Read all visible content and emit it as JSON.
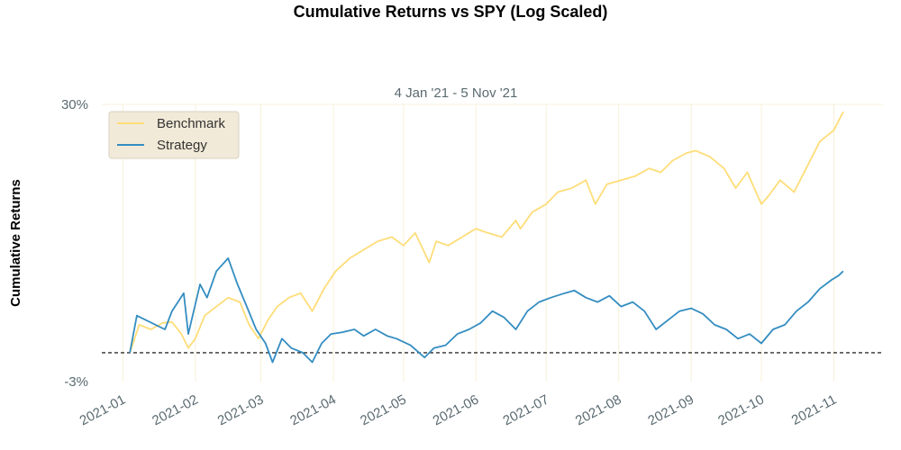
{
  "chart_data": {
    "type": "line",
    "title": "Cumulative Returns vs SPY (Log Scaled)",
    "subtitle": "4 Jan '21 -  5 Nov '21",
    "ylabel": "Cumulative Returns",
    "xlabel": "",
    "y_scale": "log",
    "ylim": [
      "-3%",
      "30%"
    ],
    "y_tick_labels": [
      "30%",
      "-3%"
    ],
    "x_tick_labels": [
      "2021-01",
      "2021-02",
      "2021-03",
      "2021-04",
      "2021-05",
      "2021-06",
      "2021-07",
      "2021-08",
      "2021-09",
      "2021-10",
      "2021-11"
    ],
    "x_tick_dates": [
      "2021-01-01",
      "2021-02-01",
      "2021-03-01",
      "2021-04-01",
      "2021-05-01",
      "2021-06-01",
      "2021-07-01",
      "2021-08-01",
      "2021-09-01",
      "2021-10-01",
      "2021-11-01"
    ],
    "xlim": [
      "2020-12-23",
      "2021-11-22"
    ],
    "grid": true,
    "baseline": 0,
    "legend_position": "top-left",
    "series": [
      {
        "name": "Benchmark",
        "color": "#fedd78",
        "x": [
          "2021-01-04",
          "2021-01-08",
          "2021-01-13",
          "2021-01-18",
          "2021-01-22",
          "2021-01-26",
          "2021-01-29",
          "2021-02-01",
          "2021-02-05",
          "2021-02-10",
          "2021-02-15",
          "2021-02-20",
          "2021-02-24",
          "2021-02-28",
          "2021-03-04",
          "2021-03-08",
          "2021-03-13",
          "2021-03-18",
          "2021-03-23",
          "2021-03-28",
          "2021-04-02",
          "2021-04-08",
          "2021-04-14",
          "2021-04-20",
          "2021-04-26",
          "2021-05-01",
          "2021-05-06",
          "2021-05-12",
          "2021-05-15",
          "2021-05-20",
          "2021-05-26",
          "2021-06-01",
          "2021-06-06",
          "2021-06-12",
          "2021-06-18",
          "2021-06-20",
          "2021-06-25",
          "2021-07-01",
          "2021-07-06",
          "2021-07-12",
          "2021-07-18",
          "2021-07-22",
          "2021-07-27",
          "2021-08-02",
          "2021-08-08",
          "2021-08-14",
          "2021-08-19",
          "2021-08-24",
          "2021-08-30",
          "2021-09-03",
          "2021-09-09",
          "2021-09-15",
          "2021-09-20",
          "2021-09-25",
          "2021-10-01",
          "2021-10-04",
          "2021-10-09",
          "2021-10-15",
          "2021-10-21",
          "2021-10-26",
          "2021-11-01",
          "2021-11-05"
        ],
        "y": [
          "0.0%",
          "3.0%",
          "2.5%",
          "3.2%",
          "3.3%",
          "2.0%",
          "0.5%",
          "1.5%",
          "4.0%",
          "5.0%",
          "6.0%",
          "5.5%",
          "3.0%",
          "1.5%",
          "3.5%",
          "5.0%",
          "6.0%",
          "6.5%",
          "4.5%",
          "7.0%",
          "9.0%",
          "10.5%",
          "11.5%",
          "12.5%",
          "13.0%",
          "12.0%",
          "13.5%",
          "10.0%",
          "12.5%",
          "12.0%",
          "13.0%",
          "14.0%",
          "13.5%",
          "13.0%",
          "15.0%",
          "14.0%",
          "16.0%",
          "17.0%",
          "18.5%",
          "19.0%",
          "20.0%",
          "17.0%",
          "19.5%",
          "20.0%",
          "20.5%",
          "21.5%",
          "21.0%",
          "22.5%",
          "23.5%",
          "23.8%",
          "23.0%",
          "21.5%",
          "19.0%",
          "21.0%",
          "17.0%",
          "18.0%",
          "20.0%",
          "18.5%",
          "22.0%",
          "25.0%",
          "26.5%",
          "29.0%"
        ]
      },
      {
        "name": "Strategy",
        "color": "#348dc1",
        "x": [
          "2021-01-04",
          "2021-01-07",
          "2021-01-11",
          "2021-01-15",
          "2021-01-19",
          "2021-01-22",
          "2021-01-27",
          "2021-01-29",
          "2021-02-03",
          "2021-02-06",
          "2021-02-10",
          "2021-02-15",
          "2021-02-19",
          "2021-02-23",
          "2021-02-27",
          "2021-03-03",
          "2021-03-06",
          "2021-03-10",
          "2021-03-14",
          "2021-03-19",
          "2021-03-23",
          "2021-03-27",
          "2021-03-31",
          "2021-04-05",
          "2021-04-10",
          "2021-04-14",
          "2021-04-19",
          "2021-04-24",
          "2021-04-28",
          "2021-05-04",
          "2021-05-10",
          "2021-05-14",
          "2021-05-19",
          "2021-05-24",
          "2021-05-29",
          "2021-06-03",
          "2021-06-08",
          "2021-06-13",
          "2021-06-18",
          "2021-06-23",
          "2021-06-28",
          "2021-07-03",
          "2021-07-09",
          "2021-07-13",
          "2021-07-18",
          "2021-07-23",
          "2021-07-28",
          "2021-08-02",
          "2021-08-07",
          "2021-08-12",
          "2021-08-17",
          "2021-08-22",
          "2021-08-27",
          "2021-09-01",
          "2021-09-06",
          "2021-09-11",
          "2021-09-16",
          "2021-09-21",
          "2021-09-26",
          "2021-10-01",
          "2021-10-06",
          "2021-10-11",
          "2021-10-16",
          "2021-10-21",
          "2021-10-26",
          "2021-10-31",
          "2021-11-03",
          "2021-11-05"
        ],
        "y": [
          "0.0%",
          "4.0%",
          "3.5%",
          "3.0%",
          "2.5%",
          "4.5%",
          "6.5%",
          "2.0%",
          "7.5%",
          "6.0%",
          "9.0%",
          "10.5%",
          "7.5%",
          "5.0%",
          "2.5%",
          "1.0%",
          "-1.0%",
          "1.5%",
          "0.5%",
          "0.0%",
          "-1.0%",
          "1.0%",
          "2.0%",
          "2.2%",
          "2.5%",
          "1.8%",
          "2.5%",
          "1.8%",
          "1.5%",
          "0.8%",
          "-0.5%",
          "0.5%",
          "0.8%",
          "2.0%",
          "2.5%",
          "3.2%",
          "4.5%",
          "3.8%",
          "2.5%",
          "4.5%",
          "5.5%",
          "6.0%",
          "6.5%",
          "6.8%",
          "6.0%",
          "5.5%",
          "6.2%",
          "5.0%",
          "5.5%",
          "4.5%",
          "2.5%",
          "3.5%",
          "4.5%",
          "4.8%",
          "4.2%",
          "3.0%",
          "2.5%",
          "1.5%",
          "2.0%",
          "1.0%",
          "2.5%",
          "3.0%",
          "4.5%",
          "5.5%",
          "7.0%",
          "8.0%",
          "8.5%",
          "9.0%"
        ]
      }
    ]
  }
}
